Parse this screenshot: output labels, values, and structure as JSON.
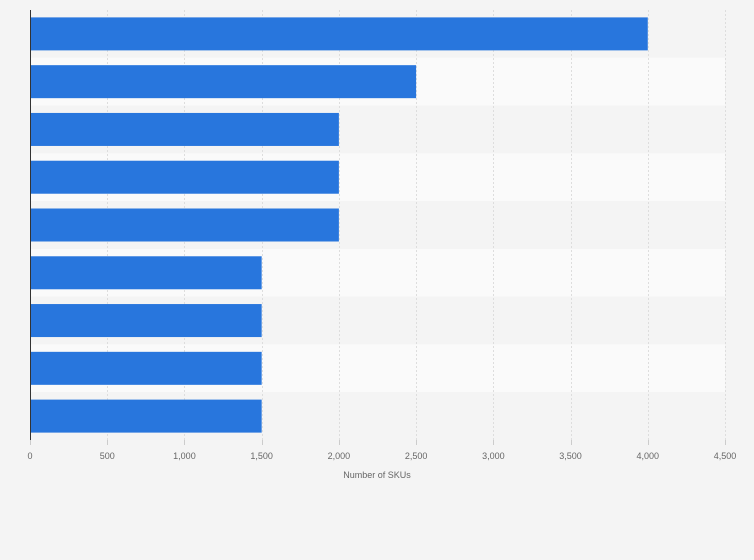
{
  "chart_data": {
    "type": "bar",
    "orientation": "horizontal",
    "categories": [
      "",
      "",
      "",
      "",
      "",
      "",
      "",
      "",
      ""
    ],
    "values": [
      4000,
      2500,
      2000,
      2000,
      2000,
      1500,
      1500,
      1500,
      1500
    ],
    "xlabel": "Number of SKUs",
    "ylabel": "",
    "xlim": [
      0,
      4500
    ],
    "ticks": [
      0,
      500,
      1000,
      1500,
      2000,
      2500,
      3000,
      3500,
      4000,
      4500
    ],
    "tick_labels": [
      "0",
      "500",
      "1,000",
      "1,500",
      "2,000",
      "2,500",
      "3,000",
      "3,500",
      "4,000",
      "4,500"
    ],
    "grid": true,
    "colors": {
      "bar": "#2876dd",
      "band_dark": "#f4f4f4",
      "band_light": "#fafafa",
      "grid": "#dddddd",
      "axis": "#333333",
      "text": "#666666"
    }
  }
}
